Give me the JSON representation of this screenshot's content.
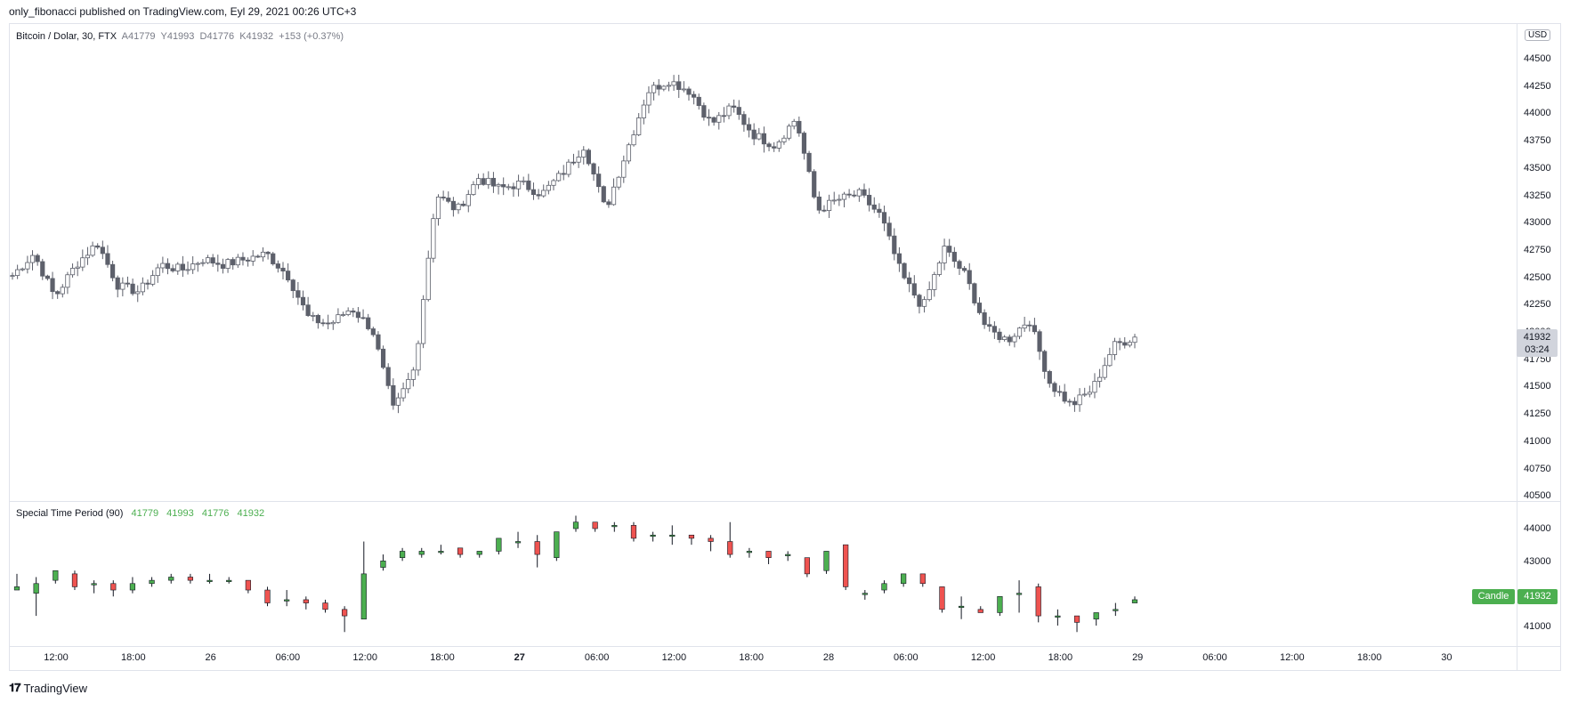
{
  "publish": "only_fibonacci published on TradingView.com, Eyl 29, 2021 00:26 UTC+3",
  "legend": {
    "title": "Bitcoin / Dolar, 30, FTX",
    "a": "A41779",
    "y": "Y41993",
    "d": "D41776",
    "k": "K41932",
    "change": "+153 (+0.37%)"
  },
  "indicator": {
    "title": "Special Time Period (90)",
    "o": "41779",
    "h": "41993",
    "l": "41776",
    "c": "41932",
    "yticks": [
      "44000",
      "43000",
      "42000",
      "41000"
    ],
    "badge_label": "Candle",
    "badge_value": "41932"
  },
  "currency": "USD",
  "price_label": {
    "price": "41932",
    "countdown": "03:24"
  },
  "yticks": [
    "44500",
    "44250",
    "44000",
    "43750",
    "43500",
    "43250",
    "43000",
    "42750",
    "42500",
    "42250",
    "42000",
    "41750",
    "41500",
    "41250",
    "41000",
    "40750",
    "40500"
  ],
  "xticks": [
    {
      "label": "12:00",
      "bold": false
    },
    {
      "label": "18:00",
      "bold": false
    },
    {
      "label": "26",
      "bold": false
    },
    {
      "label": "06:00",
      "bold": false
    },
    {
      "label": "12:00",
      "bold": false
    },
    {
      "label": "18:00",
      "bold": false
    },
    {
      "label": "27",
      "bold": true
    },
    {
      "label": "06:00",
      "bold": false
    },
    {
      "label": "12:00",
      "bold": false
    },
    {
      "label": "18:00",
      "bold": false
    },
    {
      "label": "28",
      "bold": false
    },
    {
      "label": "06:00",
      "bold": false
    },
    {
      "label": "12:00",
      "bold": false
    },
    {
      "label": "18:00",
      "bold": false
    },
    {
      "label": "29",
      "bold": false
    },
    {
      "label": "06:00",
      "bold": false
    },
    {
      "label": "12:00",
      "bold": false
    },
    {
      "label": "18:00",
      "bold": false
    },
    {
      "label": "30",
      "bold": false
    }
  ],
  "logo_text": "TradingView",
  "colors": {
    "up_fill": "#ffffff",
    "down_fill": "#5d606b",
    "wick": "#5d606b",
    "ind_up": "#4caf50",
    "ind_down": "#ef5350"
  },
  "chart_data": {
    "type": "candlestick",
    "title": "Bitcoin / Dolar, 30, FTX",
    "ylim": [
      40500,
      44500
    ],
    "main_close_path": [
      42500,
      42700,
      42300,
      42600,
      42800,
      42400,
      42350,
      42600,
      42550,
      42650,
      42600,
      42650,
      42700,
      42500,
      42100,
      42050,
      42200,
      42000,
      41250,
      41650,
      43250,
      43100,
      43400,
      43300,
      43350,
      43250,
      43450,
      43700,
      43100,
      43650,
      44200,
      44300,
      44200,
      43900,
      44050,
      43800,
      43700,
      43950,
      43100,
      43200,
      43250,
      43050,
      42500,
      42200,
      42750,
      42500,
      42000,
      41900,
      42100,
      41500,
      41300,
      41450,
      41850,
      41932
    ],
    "special_time_period": {
      "ylim": [
        40500,
        44500
      ],
      "candles": [
        {
          "o": 42100,
          "c": 42200,
          "h": 42600,
          "l": 42100
        },
        {
          "o": 42000,
          "c": 42300,
          "h": 42500,
          "l": 41300
        },
        {
          "o": 42400,
          "c": 42700,
          "h": 42700,
          "l": 42300
        },
        {
          "o": 42600,
          "c": 42200,
          "h": 42700,
          "l": 42100
        },
        {
          "o": 42300,
          "c": 42300,
          "h": 42400,
          "l": 42000
        },
        {
          "o": 42300,
          "c": 42100,
          "h": 42400,
          "l": 41900
        },
        {
          "o": 42100,
          "c": 42300,
          "h": 42500,
          "l": 42000
        },
        {
          "o": 42300,
          "c": 42400,
          "h": 42500,
          "l": 42200
        },
        {
          "o": 42400,
          "c": 42500,
          "h": 42600,
          "l": 42300
        },
        {
          "o": 42500,
          "c": 42400,
          "h": 42600,
          "l": 42300
        },
        {
          "o": 42400,
          "c": 42400,
          "h": 42600,
          "l": 42300
        },
        {
          "o": 42400,
          "c": 42400,
          "h": 42500,
          "l": 42300
        },
        {
          "o": 42400,
          "c": 42100,
          "h": 42400,
          "l": 42000
        },
        {
          "o": 42100,
          "c": 41700,
          "h": 42200,
          "l": 41600
        },
        {
          "o": 41800,
          "c": 41800,
          "h": 42100,
          "l": 41600
        },
        {
          "o": 41800,
          "c": 41700,
          "h": 41900,
          "l": 41500
        },
        {
          "o": 41700,
          "c": 41500,
          "h": 41800,
          "l": 41400
        },
        {
          "o": 41500,
          "c": 41300,
          "h": 41600,
          "l": 40800
        },
        {
          "o": 41200,
          "c": 42600,
          "h": 43600,
          "l": 41200
        },
        {
          "o": 42800,
          "c": 43000,
          "h": 43200,
          "l": 42700
        },
        {
          "o": 43100,
          "c": 43300,
          "h": 43400,
          "l": 43000
        },
        {
          "o": 43200,
          "c": 43300,
          "h": 43400,
          "l": 43100
        },
        {
          "o": 43300,
          "c": 43300,
          "h": 43500,
          "l": 43200
        },
        {
          "o": 43400,
          "c": 43200,
          "h": 43400,
          "l": 43100
        },
        {
          "o": 43200,
          "c": 43300,
          "h": 43300,
          "l": 43100
        },
        {
          "o": 43300,
          "c": 43700,
          "h": 43700,
          "l": 43200
        },
        {
          "o": 43600,
          "c": 43600,
          "h": 43900,
          "l": 43400
        },
        {
          "o": 43600,
          "c": 43200,
          "h": 43800,
          "l": 42800
        },
        {
          "o": 43100,
          "c": 43900,
          "h": 43900,
          "l": 43000
        },
        {
          "o": 44000,
          "c": 44200,
          "h": 44400,
          "l": 43900
        },
        {
          "o": 44200,
          "c": 44000,
          "h": 44200,
          "l": 43900
        },
        {
          "o": 44100,
          "c": 44100,
          "h": 44200,
          "l": 43900
        },
        {
          "o": 44100,
          "c": 43700,
          "h": 44200,
          "l": 43600
        },
        {
          "o": 43800,
          "c": 43800,
          "h": 43900,
          "l": 43600
        },
        {
          "o": 43800,
          "c": 43800,
          "h": 44100,
          "l": 43500
        },
        {
          "o": 43800,
          "c": 43700,
          "h": 43800,
          "l": 43500
        },
        {
          "o": 43700,
          "c": 43600,
          "h": 43800,
          "l": 43300
        },
        {
          "o": 43600,
          "c": 43200,
          "h": 44200,
          "l": 43100
        },
        {
          "o": 43300,
          "c": 43300,
          "h": 43400,
          "l": 43100
        },
        {
          "o": 43300,
          "c": 43100,
          "h": 43300,
          "l": 42900
        },
        {
          "o": 43200,
          "c": 43200,
          "h": 43300,
          "l": 43000
        },
        {
          "o": 43100,
          "c": 42600,
          "h": 43100,
          "l": 42500
        },
        {
          "o": 42700,
          "c": 43300,
          "h": 43300,
          "l": 42600
        },
        {
          "o": 43500,
          "c": 42200,
          "h": 43500,
          "l": 42100
        },
        {
          "o": 42000,
          "c": 42000,
          "h": 42100,
          "l": 41800
        },
        {
          "o": 42100,
          "c": 42300,
          "h": 42400,
          "l": 42000
        },
        {
          "o": 42300,
          "c": 42600,
          "h": 42600,
          "l": 42200
        },
        {
          "o": 42600,
          "c": 42300,
          "h": 42600,
          "l": 42200
        },
        {
          "o": 42200,
          "c": 41500,
          "h": 42200,
          "l": 41400
        },
        {
          "o": 41600,
          "c": 41600,
          "h": 41900,
          "l": 41200
        },
        {
          "o": 41500,
          "c": 41400,
          "h": 41600,
          "l": 41400
        },
        {
          "o": 41400,
          "c": 41900,
          "h": 41900,
          "l": 41300
        },
        {
          "o": 42000,
          "c": 42000,
          "h": 42400,
          "l": 41400
        },
        {
          "o": 42200,
          "c": 41300,
          "h": 42300,
          "l": 41100
        },
        {
          "o": 41300,
          "c": 41300,
          "h": 41500,
          "l": 41000
        },
        {
          "o": 41300,
          "c": 41100,
          "h": 41300,
          "l": 40800
        },
        {
          "o": 41200,
          "c": 41400,
          "h": 41400,
          "l": 41000
        },
        {
          "o": 41500,
          "c": 41500,
          "h": 41700,
          "l": 41300
        },
        {
          "o": 41700,
          "c": 41800,
          "h": 41900,
          "l": 41700
        }
      ]
    }
  }
}
